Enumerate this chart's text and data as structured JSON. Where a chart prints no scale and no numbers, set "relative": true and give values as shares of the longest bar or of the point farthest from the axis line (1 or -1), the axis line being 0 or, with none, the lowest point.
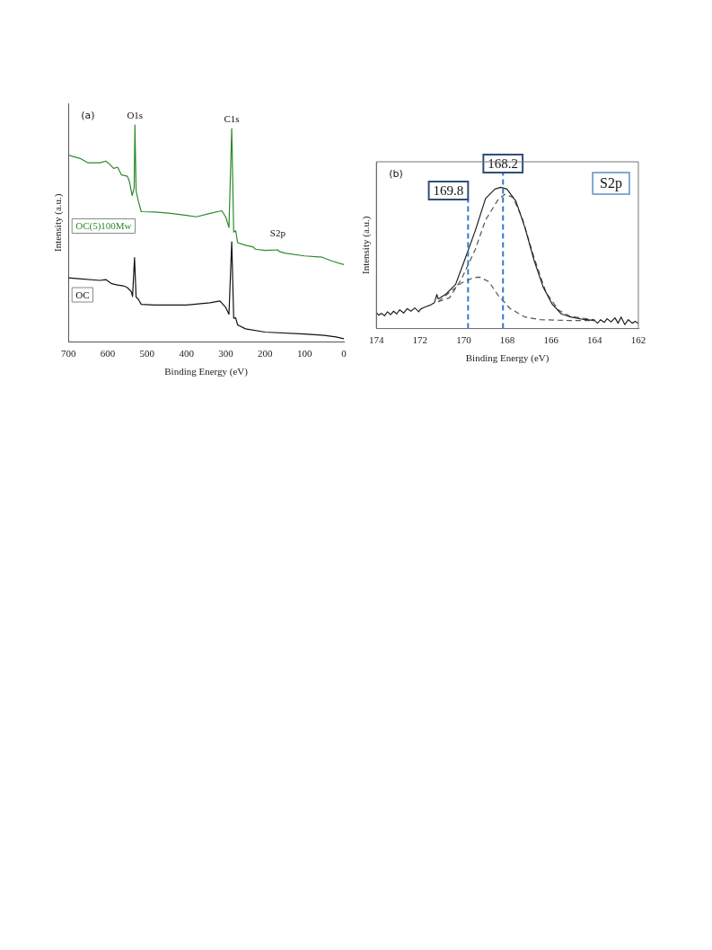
{
  "chart_data": [
    {
      "type": "line",
      "xlabel": "Binding Energy (eV)",
      "ylabel": "Intensity (a.u.)",
      "relative": true,
      "xlim": [
        700,
        0
      ],
      "xticks": [
        700,
        600,
        500,
        400,
        300,
        200,
        100,
        0
      ],
      "grid": false,
      "legend": false,
      "marker": "none",
      "annotations": [
        "(a)",
        {
          "text": "O1s",
          "x": 531,
          "y": 1.0
        },
        {
          "text": "C1s",
          "x": 285,
          "y": 0.984
        },
        {
          "text": "S2p",
          "x": 168,
          "y": 0.425
        }
      ],
      "series": [
        {
          "name": "OC(5)100Mw",
          "color": "#2a8a2a",
          "x": [
            700,
            690,
            670,
            650,
            620,
            605,
            595,
            585,
            575,
            565,
            550,
            545,
            538,
            533,
            531,
            528,
            522,
            515,
            480,
            440,
            400,
            375,
            340,
            310,
            300,
            292,
            285,
            280,
            275,
            270,
            250,
            230,
            225,
            200,
            168,
            165,
            150,
            100,
            55,
            30,
            0
          ],
          "values": [
            0.862,
            0.856,
            0.846,
            0.826,
            0.826,
            0.834,
            0.819,
            0.8,
            0.806,
            0.77,
            0.764,
            0.74,
            0.675,
            0.709,
            1.0,
            0.697,
            0.648,
            0.601,
            0.599,
            0.593,
            0.584,
            0.577,
            0.593,
            0.605,
            0.575,
            0.528,
            0.984,
            0.507,
            0.513,
            0.458,
            0.446,
            0.438,
            0.428,
            0.422,
            0.425,
            0.418,
            0.41,
            0.397,
            0.391,
            0.373,
            0.357
          ]
        },
        {
          "name": "OC",
          "color": "#111111",
          "x": [
            700,
            680,
            620,
            605,
            590,
            575,
            560,
            550,
            540,
            537,
            532,
            528,
            522,
            515,
            480,
            400,
            340,
            315,
            300,
            292,
            285,
            280,
            275,
            270,
            250,
            200,
            100,
            50,
            20,
            0
          ],
          "values": [
            0.296,
            0.293,
            0.284,
            0.288,
            0.269,
            0.263,
            0.259,
            0.251,
            0.232,
            0.21,
            0.389,
            0.208,
            0.196,
            0.174,
            0.171,
            0.171,
            0.181,
            0.189,
            0.159,
            0.128,
            0.462,
            0.11,
            0.112,
            0.079,
            0.061,
            0.046,
            0.037,
            0.031,
            0.024,
            0.015
          ]
        }
      ]
    },
    {
      "type": "line",
      "xlabel": "Binding Energy (eV)",
      "ylabel": "Intensity (a.u.)",
      "relative": true,
      "xlim": [
        174,
        162
      ],
      "xticks": [
        174,
        172,
        170,
        168,
        166,
        164,
        162
      ],
      "grid": false,
      "legend": false,
      "marker": "none",
      "annotations": [
        "(b)",
        "S2p"
      ],
      "ref_lines": [
        {
          "axis": "x",
          "value": 169.8,
          "label": "169.8",
          "color": "#3a78c9",
          "line_style": "dashed"
        },
        {
          "axis": "x",
          "value": 168.2,
          "label": "168.2",
          "color": "#3a78c9",
          "line_style": "dashed"
        }
      ],
      "series": [
        {
          "color": "#222222",
          "line_style": "solid",
          "x": [
            174.0,
            173.9,
            173.76,
            173.63,
            173.49,
            173.35,
            173.21,
            173.07,
            172.93,
            172.75,
            172.59,
            172.42,
            172.24,
            172.06,
            171.97,
            171.79,
            171.55,
            171.34,
            171.23,
            171.17
          ],
          "values": [
            0.114,
            0.095,
            0.108,
            0.091,
            0.119,
            0.099,
            0.123,
            0.104,
            0.133,
            0.11,
            0.142,
            0.123,
            0.146,
            0.119,
            0.138,
            0.152,
            0.165,
            0.184,
            0.241,
            0.209
          ]
        },
        {
          "color": "#222222",
          "line_style": "solid",
          "x": [
            164.0,
            163.87,
            163.73,
            163.56,
            163.43,
            163.25,
            163.07,
            162.93,
            162.79,
            162.62,
            162.46,
            162.28,
            162.14,
            162.0
          ],
          "values": [
            0.057,
            0.038,
            0.063,
            0.044,
            0.07,
            0.047,
            0.076,
            0.038,
            0.082,
            0.028,
            0.063,
            0.038,
            0.051,
            0.036
          ]
        },
        {
          "color": "#222222",
          "line_style": "solid",
          "x": [
            171.17,
            170.79,
            170.37,
            169.96,
            169.47,
            169.0,
            168.57,
            168.3,
            168.02,
            167.61,
            167.19,
            166.78,
            166.36,
            165.94,
            165.53,
            165.11,
            164.56,
            164.0
          ],
          "values": [
            0.209,
            0.247,
            0.313,
            0.484,
            0.693,
            0.92,
            0.987,
            1.0,
            0.987,
            0.901,
            0.712,
            0.484,
            0.294,
            0.171,
            0.104,
            0.082,
            0.066,
            0.057
          ]
        },
        {
          "color": "#555555",
          "line_style": "dashed",
          "x": [
            171.17,
            170.65,
            170.1,
            169.47,
            169.0,
            168.43,
            168.12,
            167.75,
            167.33,
            166.78,
            166.23,
            165.67,
            165.11,
            164.0
          ],
          "values": [
            0.19,
            0.218,
            0.351,
            0.56,
            0.768,
            0.911,
            0.949,
            0.93,
            0.787,
            0.503,
            0.256,
            0.133,
            0.085,
            0.063
          ]
        },
        {
          "color": "#555555",
          "line_style": "dashed",
          "x": [
            171.17,
            170.65,
            170.1,
            169.54,
            169.27,
            168.85,
            168.43,
            167.88,
            167.19,
            166.5,
            165.11,
            164.0
          ],
          "values": [
            0.19,
            0.256,
            0.323,
            0.361,
            0.364,
            0.332,
            0.237,
            0.142,
            0.082,
            0.063,
            0.057,
            0.057
          ]
        }
      ]
    }
  ]
}
